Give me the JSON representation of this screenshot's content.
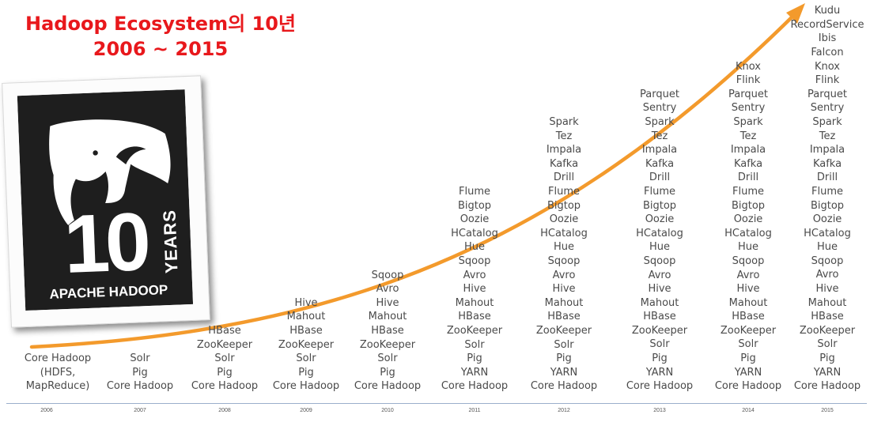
{
  "title": {
    "line1": "Hadoop Ecosystem의 10년",
    "line2": "2006 ~ 2015"
  },
  "logo": {
    "number": "10",
    "years_text": "YEARS",
    "brand_text": "APACHE HADOOP"
  },
  "colors": {
    "title": "#e8181c",
    "arrow": "#f39a2c",
    "text": "#4a4a4a",
    "baseline": "#9aaecb"
  },
  "chart_data": {
    "type": "table",
    "title": "Hadoop Ecosystem의 10년",
    "subtitle": "2006 ~ 2015",
    "columns": [
      {
        "year": "2006",
        "items": [
          "Core Hadoop",
          "(HDFS,",
          "MapReduce)"
        ]
      },
      {
        "year": "2007",
        "items": [
          "Solr",
          "Pig",
          "Core Hadoop"
        ]
      },
      {
        "year": "2008",
        "items": [
          "HBase",
          "ZooKeeper",
          "Solr",
          "Pig",
          "Core Hadoop"
        ]
      },
      {
        "year": "2009",
        "items": [
          "Hive",
          "Mahout",
          "HBase",
          "ZooKeeper",
          "Solr",
          "Pig",
          "Core Hadoop"
        ]
      },
      {
        "year": "2010",
        "items": [
          "Sqoop",
          "Avro",
          "Hive",
          "Mahout",
          "HBase",
          "ZooKeeper",
          "Solr",
          "Pig",
          "Core Hadoop"
        ]
      },
      {
        "year": "2011",
        "items": [
          "Flume",
          "Bigtop",
          "Oozie",
          "HCatalog",
          "Hue",
          "Sqoop",
          "Avro",
          "Hive",
          "Mahout",
          "HBase",
          "ZooKeeper",
          "Solr",
          "Pig",
          "YARN",
          "Core Hadoop"
        ]
      },
      {
        "year": "2012",
        "items": [
          "Spark",
          "Tez",
          "Impala",
          "Kafka",
          "Drill",
          "Flume",
          "Bigtop",
          "Oozie",
          "HCatalog",
          "Hue",
          "Sqoop",
          "Avro",
          "Hive",
          "Mahout",
          "HBase",
          "ZooKeeper",
          "Solr",
          "Pig",
          "YARN",
          "Core Hadoop"
        ]
      },
      {
        "year": "2013",
        "items": [
          "Parquet",
          "Sentry",
          "Spark",
          "Tez",
          "Impala",
          "Kafka",
          "Drill",
          "Flume",
          "Bigtop",
          "Oozie",
          "HCatalog",
          "Hue",
          "Sqoop",
          "Avro",
          "Hive",
          "Mahout",
          "HBase",
          "ZooKeeper",
          "Solr",
          "Pig",
          "YARN",
          "Core Hadoop"
        ]
      },
      {
        "year": "2014",
        "items": [
          "Knox",
          "Flink",
          "Parquet",
          "Sentry",
          "Spark",
          "Tez",
          "Impala",
          "Kafka",
          "Drill",
          "Flume",
          "Bigtop",
          "Oozie",
          "HCatalog",
          "Hue",
          "Sqoop",
          "Avro",
          "Hive",
          "Mahout",
          "HBase",
          "ZooKeeper",
          "Solr",
          "Pig",
          "YARN",
          "Core Hadoop"
        ]
      },
      {
        "year": "2015",
        "items": [
          "Kudu",
          "RecordService",
          "Ibis",
          "Falcon",
          "Knox",
          "Flink",
          "Parquet",
          "Sentry",
          "Spark",
          "Tez",
          "Impala",
          "Kafka",
          "Drill",
          "Flume",
          "Bigtop",
          "Oozie",
          "HCatalog",
          "Hue",
          "Sqoop",
          "Avro",
          "Hive",
          "Mahout",
          "HBase",
          "ZooKeeper",
          "Solr",
          "Pig",
          "YARN",
          "Core Hadoop"
        ]
      }
    ]
  }
}
